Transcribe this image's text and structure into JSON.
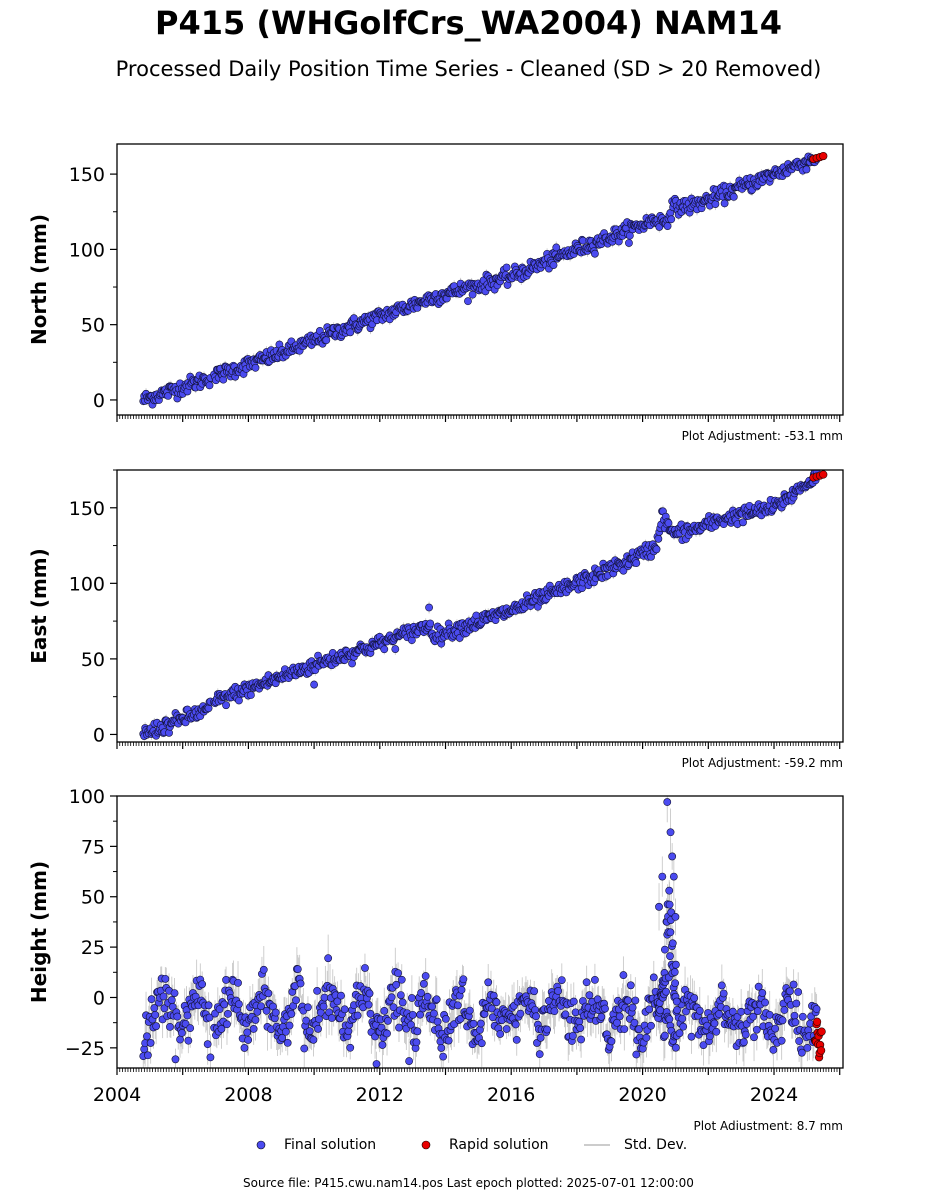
{
  "header": {
    "title": "P415 (WHGolfCrs_WA2004) NAM14",
    "subtitle": "Processed Daily Position Time Series - Cleaned (SD > 20 Removed)"
  },
  "legend": {
    "final": "Final solution",
    "rapid": "Rapid solution",
    "std": "Std. Dev."
  },
  "footer": {
    "source": "Source file: P415.cwu.nam14.pos  Last epoch plotted: 2025-07-01 12:00:00"
  },
  "colors": {
    "final": "#4b4bf0",
    "rapid": "#e80000",
    "std": "#bbbbbb"
  },
  "chart_data": [
    {
      "type": "scatter",
      "ylabel": "North (mm)",
      "adjustment": "Plot Adjustment: -53.1 mm",
      "xlim": [
        2004,
        2026.1
      ],
      "ylim": [
        -10,
        170
      ],
      "yticks": [
        0,
        50,
        100,
        150
      ],
      "trend": [
        [
          2004.8,
          0
        ],
        [
          2007.0,
          16
        ],
        [
          2009.0,
          31
        ],
        [
          2011.0,
          48
        ],
        [
          2013.0,
          63
        ],
        [
          2013.6,
          68
        ],
        [
          2016.0,
          82
        ],
        [
          2018.0,
          100
        ],
        [
          2019.5,
          112
        ],
        [
          2020.4,
          120
        ],
        [
          2020.7,
          118
        ],
        [
          2020.9,
          128
        ],
        [
          2021.5,
          129
        ],
        [
          2022.5,
          137
        ],
        [
          2024.0,
          150
        ],
        [
          2025.3,
          161
        ]
      ],
      "anomalies": [],
      "noise": 2.5,
      "rapid": {
        "x": [
          2025.2,
          2025.5
        ],
        "y": [
          160,
          162
        ]
      }
    },
    {
      "type": "scatter",
      "ylabel": "East (mm)",
      "adjustment": "Plot Adjustment: -59.2 mm",
      "xlim": [
        2004,
        2026.1
      ],
      "ylim": [
        -5,
        175
      ],
      "yticks": [
        0,
        50,
        100,
        150
      ],
      "trend": [
        [
          2004.8,
          0
        ],
        [
          2006.8,
          17
        ],
        [
          2007.0,
          22
        ],
        [
          2009.0,
          38
        ],
        [
          2010.0,
          46
        ],
        [
          2012.0,
          60
        ],
        [
          2013.5,
          72
        ],
        [
          2013.7,
          65
        ],
        [
          2016.0,
          82
        ],
        [
          2018.0,
          100
        ],
        [
          2019.5,
          114
        ],
        [
          2020.4,
          124
        ],
        [
          2020.6,
          145
        ],
        [
          2020.9,
          133
        ],
        [
          2021.5,
          135
        ],
        [
          2022.5,
          143
        ],
        [
          2024.0,
          150
        ],
        [
          2025.3,
          171
        ]
      ],
      "anomalies": [
        [
          2013.5,
          84
        ],
        [
          2010.0,
          33
        ]
      ],
      "noise": 2.5,
      "rapid": {
        "x": [
          2025.2,
          2025.5
        ],
        "y": [
          170,
          172
        ]
      }
    },
    {
      "type": "scatter",
      "ylabel": "Height (mm)",
      "adjustment": "Plot Adjustment: 8.7 mm",
      "xlim": [
        2004,
        2026.1
      ],
      "ylim": [
        -35,
        100
      ],
      "yticks": [
        -25,
        0,
        25,
        50,
        75,
        100
      ],
      "xticks": [
        2004,
        2008,
        2012,
        2016,
        2020,
        2024
      ],
      "trend": [
        [
          2004.8,
          -7
        ],
        [
          2025.3,
          -10
        ]
      ],
      "seasonal_amplitude": 8,
      "anomalies": [
        [
          2020.5,
          45
        ],
        [
          2020.75,
          97
        ],
        [
          2020.85,
          82
        ],
        [
          2020.95,
          60
        ],
        [
          2021.0,
          40
        ],
        [
          2020.6,
          60
        ],
        [
          2020.9,
          70
        ],
        [
          2011.9,
          -33
        ]
      ],
      "noise": 6,
      "rapid": {
        "x": [
          2025.25,
          2025.45
        ],
        "y": [
          -30,
          -12
        ]
      }
    }
  ]
}
